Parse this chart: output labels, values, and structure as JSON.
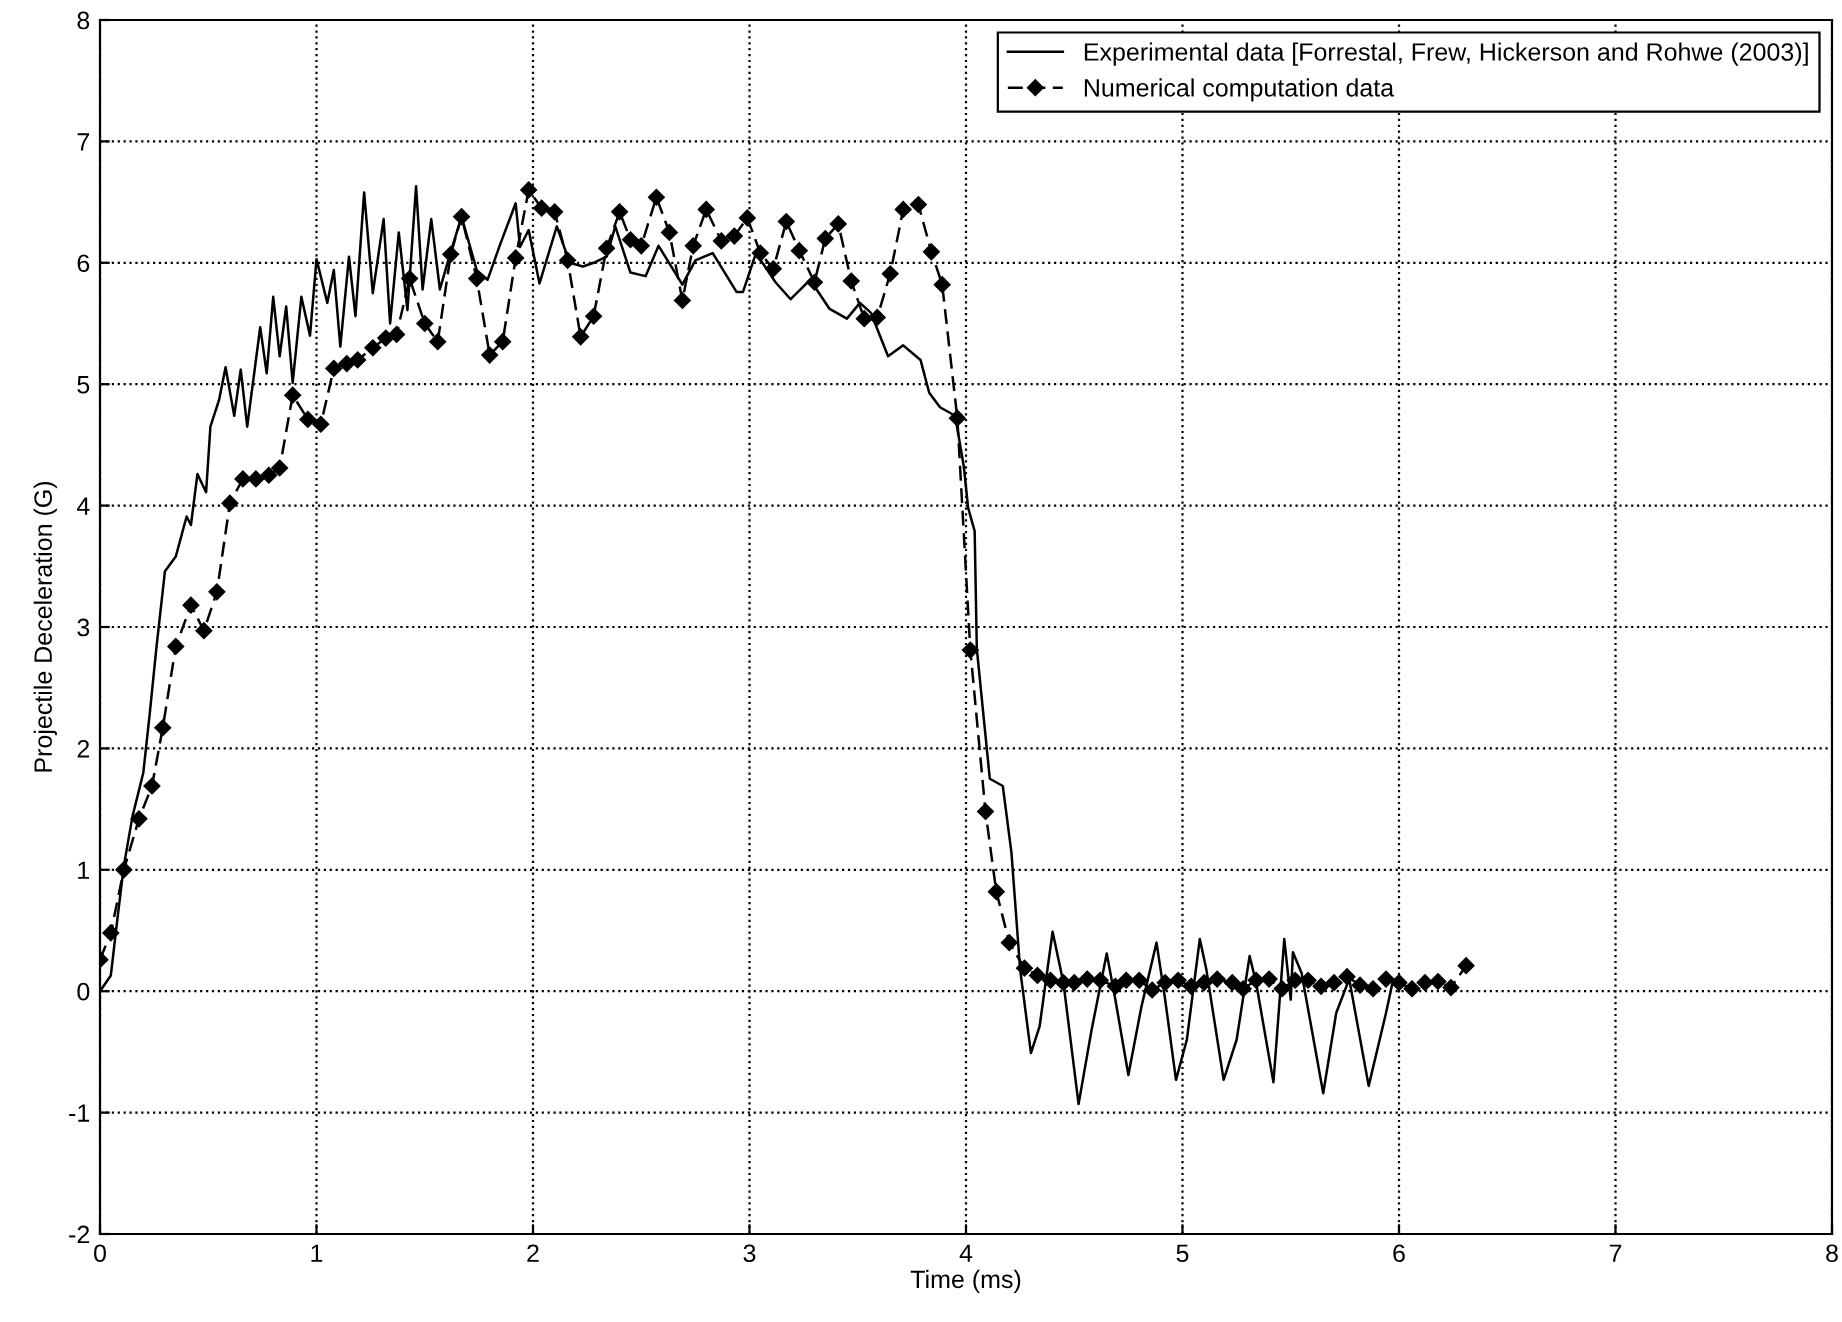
{
  "chart_data": {
    "type": "line",
    "xlabel": "Time (ms)",
    "ylabel": "Projectile Deceleration (G)",
    "xlim": [
      0,
      8
    ],
    "ylim": [
      -2,
      8
    ],
    "xticks": [
      0,
      1,
      2,
      3,
      4,
      5,
      6,
      7,
      8
    ],
    "yticks": [
      -2,
      -1,
      0,
      1,
      2,
      3,
      4,
      5,
      6,
      7,
      8
    ],
    "grid": true,
    "legend": "top right",
    "series": [
      {
        "name": "Experimental data [Forrestal, Frew, Hickerson and Rohwe (2003)]",
        "color": "#000000",
        "marker": "none",
        "line_style": "solid",
        "x": [
          0,
          0.05,
          0.08,
          0.11,
          0.15,
          0.2,
          0.23,
          0.26,
          0.3,
          0.35,
          0.4,
          0.42,
          0.45,
          0.49,
          0.51,
          0.55,
          0.58,
          0.62,
          0.65,
          0.68,
          0.74,
          0.77,
          0.8,
          0.83,
          0.86,
          0.89,
          0.93,
          0.97,
          1.0,
          1.05,
          1.08,
          1.11,
          1.15,
          1.18,
          1.22,
          1.26,
          1.31,
          1.34,
          1.38,
          1.42,
          1.46,
          1.49,
          1.53,
          1.57,
          1.61,
          1.67,
          1.74,
          1.79,
          1.85,
          1.92,
          1.94,
          1.98,
          2.03,
          2.11,
          2.17,
          2.23,
          2.28,
          2.34,
          2.38,
          2.45,
          2.52,
          2.58,
          2.69,
          2.75,
          2.83,
          2.94,
          2.97,
          3.03,
          3.12,
          3.19,
          3.28,
          3.37,
          3.45,
          3.51,
          3.56,
          3.64,
          3.71,
          3.79,
          3.83,
          3.88,
          3.95,
          3.99,
          4.01,
          4.04,
          4.05,
          4.11,
          4.17,
          4.21,
          4.25,
          4.3,
          4.34,
          4.4,
          4.45,
          4.52,
          4.58,
          4.65,
          4.69,
          4.75,
          4.81,
          4.88,
          4.92,
          4.97,
          5.02,
          5.08,
          5.11,
          5.19,
          5.25,
          5.31,
          5.34,
          5.42,
          5.47,
          5.5,
          5.51,
          5.55,
          5.65,
          5.71,
          5.77,
          5.86,
          5.94,
          5.97,
          6.0
        ],
        "values": [
          0,
          0.13,
          0.59,
          1.03,
          1.44,
          1.8,
          2.29,
          2.82,
          3.46,
          3.58,
          3.91,
          3.84,
          4.26,
          4.11,
          4.65,
          4.87,
          5.14,
          4.74,
          5.12,
          4.65,
          5.47,
          5.09,
          5.72,
          5.23,
          5.64,
          5.01,
          5.72,
          5.4,
          6.03,
          5.67,
          5.94,
          5.31,
          6.05,
          5.56,
          6.58,
          5.75,
          6.36,
          5.5,
          6.25,
          5.61,
          6.63,
          5.78,
          6.36,
          5.78,
          6.03,
          6.38,
          5.94,
          5.86,
          6.16,
          6.49,
          6.13,
          6.27,
          5.83,
          6.3,
          6.0,
          5.97,
          6.0,
          6.05,
          6.3,
          5.92,
          5.89,
          6.14,
          5.82,
          6.02,
          6.08,
          5.76,
          5.76,
          6.08,
          5.84,
          5.7,
          5.86,
          5.62,
          5.54,
          5.67,
          5.59,
          5.23,
          5.32,
          5.2,
          4.93,
          4.81,
          4.74,
          4.32,
          3.98,
          3.79,
          2.82,
          1.75,
          1.69,
          1.14,
          0.18,
          -0.51,
          -0.29,
          0.49,
          0.07,
          -0.93,
          -0.32,
          0.31,
          -0.07,
          -0.69,
          -0.13,
          0.4,
          -0.07,
          -0.73,
          -0.4,
          0.43,
          0.18,
          -0.73,
          -0.4,
          0.29,
          0.07,
          -0.75,
          0.43,
          -0.07,
          0.32,
          0.15,
          -0.84,
          -0.18,
          0.1,
          -0.78,
          -0.18,
          0.07,
          0.07
        ]
      },
      {
        "name": "Numerical computation data",
        "color": "#000000",
        "marker": "diamond",
        "line_style": "dashed",
        "x": [
          0,
          0.05,
          0.11,
          0.18,
          0.24,
          0.29,
          0.35,
          0.42,
          0.48,
          0.54,
          0.6,
          0.66,
          0.72,
          0.78,
          0.83,
          0.89,
          0.96,
          1.02,
          1.08,
          1.14,
          1.19,
          1.26,
          1.32,
          1.37,
          1.43,
          1.5,
          1.56,
          1.62,
          1.67,
          1.74,
          1.8,
          1.86,
          1.92,
          1.98,
          2.04,
          2.1,
          2.16,
          2.22,
          2.28,
          2.34,
          2.4,
          2.45,
          2.5,
          2.57,
          2.63,
          2.69,
          2.74,
          2.8,
          2.87,
          2.93,
          2.99,
          3.05,
          3.11,
          3.17,
          3.23,
          3.3,
          3.35,
          3.41,
          3.47,
          3.53,
          3.59,
          3.65,
          3.71,
          3.78,
          3.84,
          3.89,
          3.96,
          4.02,
          4.09,
          4.14,
          4.2,
          4.27,
          4.33,
          4.39,
          4.45,
          4.5,
          4.56,
          4.62,
          4.69,
          4.74,
          4.8,
          4.86,
          4.92,
          4.98,
          5.04,
          5.1,
          5.16,
          5.23,
          5.28,
          5.34,
          5.4,
          5.46,
          5.52,
          5.58,
          5.64,
          5.7,
          5.76,
          5.82,
          5.88,
          5.94,
          6.0,
          6.06,
          6.12,
          6.18,
          6.24,
          6.31
        ],
        "values": [
          0.26,
          0.48,
          1.0,
          1.42,
          1.69,
          2.17,
          2.84,
          3.18,
          2.97,
          3.29,
          4.02,
          4.22,
          4.22,
          4.25,
          4.31,
          4.91,
          4.71,
          4.67,
          5.13,
          5.17,
          5.2,
          5.3,
          5.38,
          5.41,
          5.87,
          5.5,
          5.35,
          6.07,
          6.38,
          5.87,
          5.24,
          5.35,
          6.04,
          6.6,
          6.45,
          6.42,
          6.02,
          5.39,
          5.56,
          6.12,
          6.42,
          6.19,
          6.14,
          6.54,
          6.25,
          5.69,
          6.14,
          6.44,
          6.18,
          6.22,
          6.37,
          6.08,
          5.95,
          6.34,
          6.1,
          5.84,
          6.2,
          6.32,
          5.85,
          5.54,
          5.55,
          5.91,
          6.44,
          6.48,
          6.09,
          5.82,
          4.72,
          2.81,
          1.48,
          0.82,
          0.4,
          0.19,
          0.13,
          0.09,
          0.07,
          0.07,
          0.1,
          0.09,
          0.04,
          0.09,
          0.09,
          0.01,
          0.07,
          0.09,
          0.04,
          0.07,
          0.1,
          0.07,
          0.02,
          0.09,
          0.1,
          0.02,
          0.09,
          0.09,
          0.04,
          0.07,
          0.12,
          0.05,
          0.02,
          0.1,
          0.07,
          0.02,
          0.07,
          0.08,
          0.03,
          0.21
        ]
      }
    ]
  }
}
